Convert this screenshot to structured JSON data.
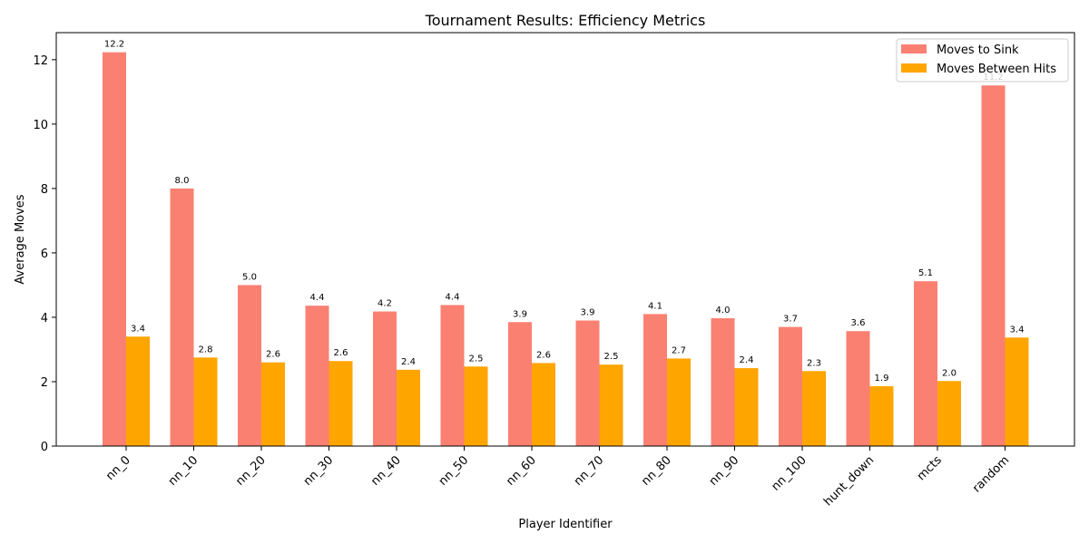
{
  "chart_data": {
    "type": "bar",
    "title": "Tournament Results: Efficiency Metrics",
    "xlabel": "Player Identifier",
    "ylabel": "Average Moves",
    "categories": [
      "nn_0",
      "nn_10",
      "nn_20",
      "nn_30",
      "nn_40",
      "nn_50",
      "nn_60",
      "nn_70",
      "nn_80",
      "nn_90",
      "nn_100",
      "hunt_down",
      "mcts",
      "random"
    ],
    "series": [
      {
        "name": "Moves to Sink",
        "color": "#fa8072",
        "values": [
          12.23,
          8.0,
          5.0,
          4.36,
          4.18,
          4.38,
          3.85,
          3.9,
          4.1,
          3.97,
          3.7,
          3.57,
          5.12,
          11.2
        ],
        "labels": [
          "12.2",
          "8.0",
          "5.0",
          "4.4",
          "4.2",
          "4.4",
          "3.9",
          "3.9",
          "4.1",
          "4.0",
          "3.7",
          "3.6",
          "5.1",
          "11.2"
        ]
      },
      {
        "name": "Moves Between Hits",
        "color": "#ffa500",
        "values": [
          3.4,
          2.75,
          2.6,
          2.64,
          2.37,
          2.47,
          2.58,
          2.53,
          2.72,
          2.42,
          2.33,
          1.86,
          2.02,
          3.37
        ],
        "labels": [
          "3.4",
          "2.8",
          "2.6",
          "2.6",
          "2.4",
          "2.5",
          "2.6",
          "2.5",
          "2.7",
          "2.4",
          "2.3",
          "1.9",
          "2.0",
          "3.4"
        ]
      }
    ],
    "yticks": [
      0,
      2,
      4,
      6,
      8,
      10,
      12
    ],
    "ylim": [
      0,
      12.84
    ],
    "grid": false,
    "legend_position": "top-right"
  }
}
